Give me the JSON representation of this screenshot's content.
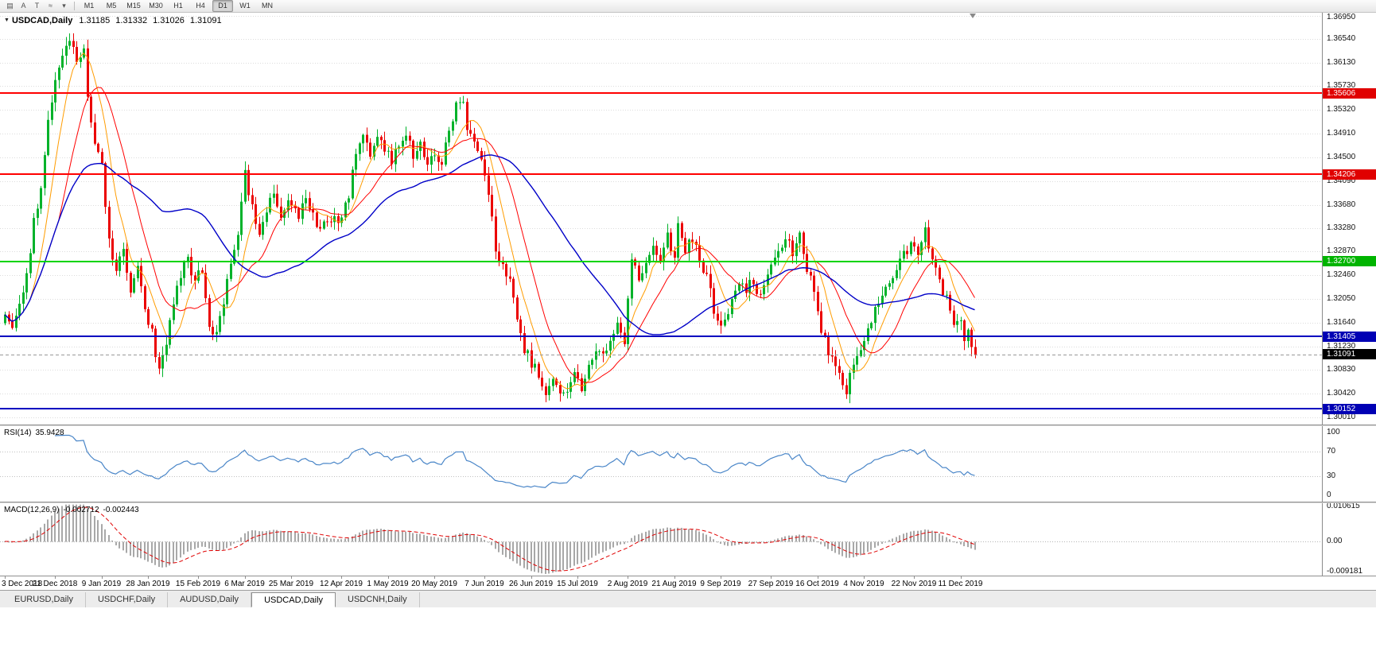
{
  "toolbar": {
    "icons": [
      {
        "name": "chart-window-icon",
        "glyph": "▤"
      },
      {
        "name": "cursor-tool-icon",
        "glyph": "A"
      },
      {
        "name": "text-tool-icon",
        "glyph": "T"
      },
      {
        "name": "line-studies-icon",
        "glyph": "≈"
      },
      {
        "name": "dropdown-arrow-icon",
        "glyph": "▾"
      }
    ],
    "timeframes": [
      "M1",
      "M5",
      "M15",
      "M30",
      "H1",
      "H4",
      "D1",
      "W1",
      "MN"
    ],
    "active_timeframe": "D1"
  },
  "chart": {
    "title_symbol": "USDCAD,Daily",
    "ohlc": {
      "open": "1.31185",
      "high": "1.31332",
      "low": "1.31026",
      "close": "1.31091"
    },
    "price_axis_ticks": [
      "1.36950",
      "1.36540",
      "1.36130",
      "1.35730",
      "1.35320",
      "1.34910",
      "1.34500",
      "1.34090",
      "1.33680",
      "1.33280",
      "1.32870",
      "1.32460",
      "1.32050",
      "1.31640",
      "1.31230",
      "1.30830",
      "1.30420",
      "1.30010"
    ]
  },
  "rsi": {
    "label": "RSI(14)",
    "value": "35.9428",
    "axis_ticks": [
      "100",
      "70",
      "30",
      "0"
    ],
    "level_lines": [
      70,
      30
    ]
  },
  "macd": {
    "label": "MACD(12,26,9)",
    "value_main": "-0.002712",
    "value_signal": "-0.002443",
    "axis_ticks": [
      "0.010615",
      "0.00",
      "-0.009181"
    ]
  },
  "time_axis": {
    "labels": [
      "3 Dec 2018",
      "21 Dec 2018",
      "9 Jan 2019",
      "28 Jan 2019",
      "15 Feb 2019",
      "6 Mar 2019",
      "25 Mar 2019",
      "12 Apr 2019",
      "1 May 2019",
      "20 May 2019",
      "7 Jun 2019",
      "26 Jun 2019",
      "15 Jul 2019",
      "2 Aug 2019",
      "21 Aug 2019",
      "9 Sep 2019",
      "27 Sep 2019",
      "16 Oct 2019",
      "4 Nov 2019",
      "22 Nov 2019",
      "11 Dec 2019"
    ],
    "bar_indices": [
      0,
      14,
      27,
      40,
      54,
      67,
      80,
      94,
      107,
      120,
      134,
      147,
      160,
      174,
      187,
      200,
      214,
      227,
      240,
      254,
      267
    ]
  },
  "tabs": {
    "items": [
      "EURUSD,Daily",
      "USDCHF,Daily",
      "AUDUSD,Daily",
      "USDCAD,Daily",
      "USDCNH,Daily"
    ],
    "active": "USDCAD,Daily"
  },
  "chart_data": {
    "type": "candlestick",
    "symbol": "USDCAD",
    "timeframe": "Daily",
    "bars": 272,
    "y_range": [
      1.2988,
      1.37
    ],
    "x_range_dates": [
      "3 Dec 2018",
      "20 Dec 2019"
    ],
    "levels": [
      {
        "price": 1.35606,
        "label": "1.35606",
        "line_color": "#ff0000",
        "tag_bg": "#e00000"
      },
      {
        "price": 1.34206,
        "label": "1.34206",
        "line_color": "#ff0000",
        "tag_bg": "#e00000"
      },
      {
        "price": 1.327,
        "label": "1.32700",
        "line_color": "#00d400",
        "tag_bg": "#00b400"
      },
      {
        "price": 1.31405,
        "label": "1.31405",
        "line_color": "#0000c0",
        "tag_bg": "#0000b4"
      },
      {
        "price": 1.30152,
        "label": "1.30152",
        "line_color": "#0000c0",
        "tag_bg": "#0000b4"
      }
    ],
    "current_price": {
      "price": 1.31091,
      "label": "1.31091",
      "tag_bg": "#000000",
      "line_color": "#999999"
    },
    "moving_averages": [
      {
        "name": "ma-fast-orange",
        "period": 8,
        "color": "#ff9c00",
        "width": 1
      },
      {
        "name": "ma-medium-red",
        "period": 16,
        "color": "#ff0000",
        "width": 1
      },
      {
        "name": "ma-slow-blue",
        "period": 45,
        "color": "#0000c8",
        "width": 1.4
      }
    ],
    "rsi_period": 14,
    "macd_params": [
      12,
      26,
      9
    ],
    "macd_y_range": [
      -0.0105,
      0.0117
    ],
    "colors": {
      "up": "#00b22a",
      "down": "#eb0000",
      "grid": "#dcdcdc",
      "rsi_line": "#4a86c8",
      "rsi_levels": "#c0c0c0",
      "macd_hist": "#a8a8a8",
      "macd_signal": "#e00000",
      "zero_line": "#b4b4b4"
    },
    "price_path_anchors": [
      [
        0,
        1.3185
      ],
      [
        2,
        1.3165
      ],
      [
        4,
        1.3205
      ],
      [
        6,
        1.3245
      ],
      [
        8,
        1.334
      ],
      [
        10,
        1.339
      ],
      [
        12,
        1.351
      ],
      [
        14,
        1.3585
      ],
      [
        16,
        1.363
      ],
      [
        18,
        1.3655
      ],
      [
        20,
        1.361
      ],
      [
        22,
        1.3648
      ],
      [
        23,
        1.356
      ],
      [
        25,
        1.347
      ],
      [
        27,
        1.343
      ],
      [
        29,
        1.3305
      ],
      [
        31,
        1.3255
      ],
      [
        33,
        1.329
      ],
      [
        35,
        1.3225
      ],
      [
        37,
        1.3258
      ],
      [
        39,
        1.3185
      ],
      [
        41,
        1.315
      ],
      [
        43,
        1.3078
      ],
      [
        45,
        1.3135
      ],
      [
        47,
        1.3205
      ],
      [
        49,
        1.3248
      ],
      [
        51,
        1.327
      ],
      [
        53,
        1.3238
      ],
      [
        55,
        1.3252
      ],
      [
        57,
        1.3152
      ],
      [
        59,
        1.314
      ],
      [
        61,
        1.3205
      ],
      [
        63,
        1.3258
      ],
      [
        65,
        1.331
      ],
      [
        67,
        1.3425
      ],
      [
        69,
        1.3362
      ],
      [
        71,
        1.3325
      ],
      [
        73,
        1.3358
      ],
      [
        75,
        1.3388
      ],
      [
        77,
        1.3342
      ],
      [
        79,
        1.3372
      ],
      [
        82,
        1.3348
      ],
      [
        84,
        1.3378
      ],
      [
        86,
        1.3352
      ],
      [
        88,
        1.3325
      ],
      [
        90,
        1.3338
      ],
      [
        92,
        1.3348
      ],
      [
        94,
        1.3342
      ],
      [
        96,
        1.3385
      ],
      [
        98,
        1.3455
      ],
      [
        100,
        1.3492
      ],
      [
        102,
        1.3455
      ],
      [
        104,
        1.3478
      ],
      [
        106,
        1.3468
      ],
      [
        108,
        1.3445
      ],
      [
        110,
        1.3468
      ],
      [
        112,
        1.3492
      ],
      [
        114,
        1.3455
      ],
      [
        116,
        1.3472
      ],
      [
        118,
        1.3442
      ],
      [
        120,
        1.3455
      ],
      [
        122,
        1.344
      ],
      [
        124,
        1.3492
      ],
      [
        126,
        1.354
      ],
      [
        128,
        1.3555
      ],
      [
        129,
        1.3505
      ],
      [
        131,
        1.3482
      ],
      [
        133,
        1.3445
      ],
      [
        135,
        1.3395
      ],
      [
        137,
        1.329
      ],
      [
        139,
        1.3268
      ],
      [
        141,
        1.324
      ],
      [
        143,
        1.316
      ],
      [
        145,
        1.312
      ],
      [
        147,
        1.3095
      ],
      [
        149,
        1.3072
      ],
      [
        151,
        1.3048
      ],
      [
        153,
        1.3062
      ],
      [
        155,
        1.3035
      ],
      [
        157,
        1.3048
      ],
      [
        159,
        1.3078
      ],
      [
        161,
        1.3055
      ],
      [
        163,
        1.3082
      ],
      [
        165,
        1.3122
      ],
      [
        167,
        1.3105
      ],
      [
        169,
        1.3138
      ],
      [
        171,
        1.3168
      ],
      [
        173,
        1.3118
      ],
      [
        175,
        1.328
      ],
      [
        177,
        1.323
      ],
      [
        179,
        1.3268
      ],
      [
        181,
        1.3292
      ],
      [
        183,
        1.3262
      ],
      [
        185,
        1.3312
      ],
      [
        187,
        1.3268
      ],
      [
        188,
        1.333
      ],
      [
        190,
        1.3292
      ],
      [
        192,
        1.3312
      ],
      [
        194,
        1.3272
      ],
      [
        196,
        1.3245
      ],
      [
        199,
        1.316
      ],
      [
        202,
        1.3185
      ],
      [
        205,
        1.3238
      ],
      [
        207,
        1.3222
      ],
      [
        209,
        1.3238
      ],
      [
        211,
        1.3208
      ],
      [
        213,
        1.3248
      ],
      [
        215,
        1.3268
      ],
      [
        218,
        1.3305
      ],
      [
        220,
        1.3288
      ],
      [
        222,
        1.3312
      ],
      [
        224,
        1.3252
      ],
      [
        226,
        1.3222
      ],
      [
        228,
        1.3155
      ],
      [
        230,
        1.3112
      ],
      [
        233,
        1.3068
      ],
      [
        235,
        1.3048
      ],
      [
        237,
        1.3088
      ],
      [
        239,
        1.3125
      ],
      [
        241,
        1.3148
      ],
      [
        243,
        1.3185
      ],
      [
        245,
        1.3215
      ],
      [
        247,
        1.3238
      ],
      [
        249,
        1.3255
      ],
      [
        251,
        1.3282
      ],
      [
        253,
        1.33
      ],
      [
        255,
        1.3288
      ],
      [
        257,
        1.3322
      ],
      [
        259,
        1.3268
      ],
      [
        261,
        1.3232
      ],
      [
        263,
        1.3205
      ],
      [
        265,
        1.3168
      ],
      [
        267,
        1.3162
      ],
      [
        268,
        1.3138
      ],
      [
        269,
        1.3152
      ],
      [
        270,
        1.3122
      ],
      [
        271,
        1.31091
      ]
    ]
  }
}
